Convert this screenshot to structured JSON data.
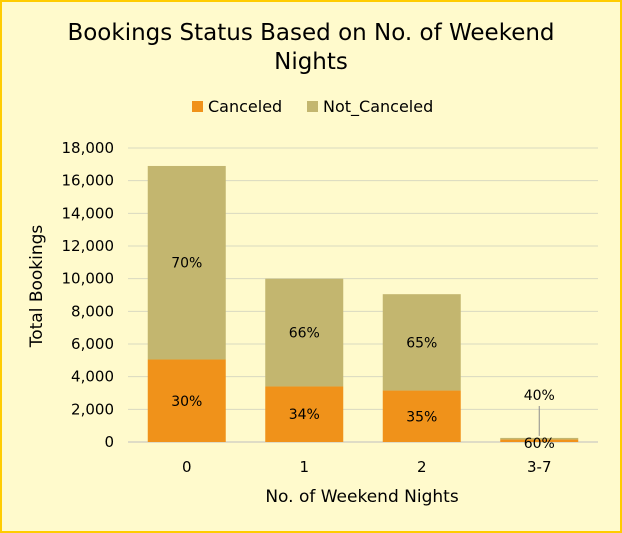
{
  "chart_data": {
    "type": "bar",
    "stacked": true,
    "title": "Bookings Status Based on No. of Weekend Nights",
    "title_lines": [
      "Bookings Status Based on No. of Weekend",
      "Nights"
    ],
    "xlabel": "No. of Weekend Nights",
    "ylabel": "Total  Bookings",
    "categories": [
      "0",
      "1",
      "2",
      "3-7"
    ],
    "ylim": [
      0,
      18000
    ],
    "yticks": [
      0,
      2000,
      4000,
      6000,
      8000,
      10000,
      12000,
      14000,
      16000,
      18000
    ],
    "ytick_labels": [
      "0",
      "2,000",
      "4,000",
      "6,000",
      "8,000",
      "10,000",
      "12,000",
      "14,000",
      "16,000",
      "18,000"
    ],
    "grid": true,
    "legend_position": "top",
    "series": [
      {
        "name": "Canceled",
        "color": "#f0921a",
        "values": [
          5050,
          3400,
          3150,
          150
        ],
        "labels": [
          "30%",
          "34%",
          "35%",
          "60%"
        ]
      },
      {
        "name": "Not_Canceled",
        "color": "#c3b66f",
        "values": [
          11850,
          6600,
          5900,
          100
        ],
        "labels": [
          "70%",
          "66%",
          "65%",
          "40%"
        ]
      }
    ]
  }
}
